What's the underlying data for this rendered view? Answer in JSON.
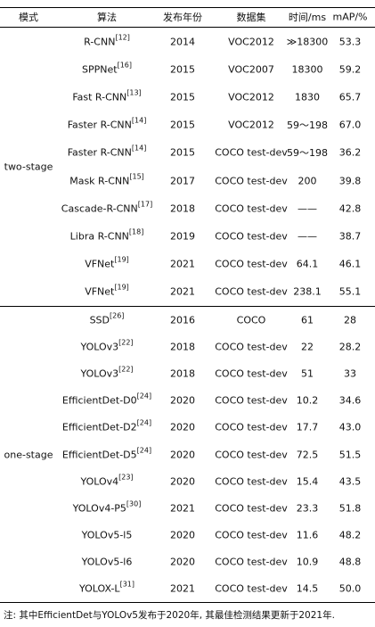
{
  "header": {
    "columns": [
      "模式",
      "算法",
      "发布年份",
      "数据集",
      "时间/ms",
      "mAP/%"
    ]
  },
  "groups": [
    {
      "mode": "two-stage",
      "rows": [
        {
          "algorithm": {
            "name": "R-CNN",
            "ref": "[12]"
          },
          "year": "2014",
          "dataset": "VOC2012",
          "time": "≫18300",
          "map": "53.3"
        },
        {
          "algorithm": {
            "name": "SPPNet",
            "ref": "[16]"
          },
          "year": "2015",
          "dataset": "VOC2007",
          "time": "18300",
          "map": "59.2"
        },
        {
          "algorithm": {
            "name": "Fast R-CNN",
            "ref": "[13]"
          },
          "year": "2015",
          "dataset": "VOC2012",
          "time": "1830",
          "map": "65.7"
        },
        {
          "algorithm": {
            "name": "Faster R-CNN",
            "ref": "[14]"
          },
          "year": "2015",
          "dataset": "VOC2012",
          "time": "59～198",
          "map": "67.0"
        },
        {
          "algorithm": {
            "name": "Faster R-CNN",
            "ref": "[14]"
          },
          "year": "2015",
          "dataset": "COCO test-dev",
          "time": "59～198",
          "map": "36.2"
        },
        {
          "algorithm": {
            "name": "Mask R-CNN",
            "ref": "[15]"
          },
          "year": "2017",
          "dataset": "COCO test-dev",
          "time": "200",
          "map": "39.8"
        },
        {
          "algorithm": {
            "name": "Cascade-R-CNN",
            "ref": "[17]"
          },
          "year": "2018",
          "dataset": "COCO test-dev",
          "time": "——",
          "map": "42.8"
        },
        {
          "algorithm": {
            "name": "Libra R-CNN",
            "ref": "[18]"
          },
          "year": "2019",
          "dataset": "COCO test-dev",
          "time": "——",
          "map": "38.7"
        },
        {
          "algorithm": {
            "name": "VFNet",
            "ref": "[19]"
          },
          "year": "2021",
          "dataset": "COCO test-dev",
          "time": "64.1",
          "map": "46.1"
        },
        {
          "algorithm": {
            "name": "VFNet",
            "ref": "[19]"
          },
          "year": "2021",
          "dataset": "COCO test-dev",
          "time": "238.1",
          "map": "55.1"
        }
      ]
    },
    {
      "mode": "one-stage",
      "rows": [
        {
          "algorithm": {
            "name": "SSD",
            "ref": "[26]"
          },
          "year": "2016",
          "dataset": "COCO",
          "time": "61",
          "map": "28"
        },
        {
          "algorithm": {
            "name": "YOLOv3",
            "ref": "[22]"
          },
          "year": "2018",
          "dataset": "COCO test-dev",
          "time": "22",
          "map": "28.2"
        },
        {
          "algorithm": {
            "name": "YOLOv3",
            "ref": "[22]"
          },
          "year": "2018",
          "dataset": "COCO test-dev",
          "time": "51",
          "map": "33"
        },
        {
          "algorithm": {
            "name": "EfficientDet-D0",
            "ref": "[24]"
          },
          "year": "2020",
          "dataset": "COCO test-dev",
          "time": "10.2",
          "map": "34.6"
        },
        {
          "algorithm": {
            "name": "EfficientDet-D2",
            "ref": "[24]"
          },
          "year": "2020",
          "dataset": "COCO test-dev",
          "time": "17.7",
          "map": "43.0"
        },
        {
          "algorithm": {
            "name": "EfficientDet-D5",
            "ref": "[24]"
          },
          "year": "2020",
          "dataset": "COCO test-dev",
          "time": "72.5",
          "map": "51.5"
        },
        {
          "algorithm": {
            "name": "YOLOv4",
            "ref": "[23]"
          },
          "year": "2020",
          "dataset": "COCO test-dev",
          "time": "15.4",
          "map": "43.5"
        },
        {
          "algorithm": {
            "name": "YOLOv4-P5",
            "ref": "[30]"
          },
          "year": "2021",
          "dataset": "COCO test-dev",
          "time": "23.3",
          "map": "51.8"
        },
        {
          "algorithm": {
            "name": "YOLOv5-l5",
            "ref": null
          },
          "year": "2020",
          "dataset": "COCO test-dev",
          "time": "11.6",
          "map": "48.2"
        },
        {
          "algorithm": {
            "name": "YOLOv5-l6",
            "ref": null
          },
          "year": "2020",
          "dataset": "COCO test-dev",
          "time": "10.9",
          "map": "48.8"
        },
        {
          "algorithm": {
            "name": "YOLOX-L",
            "ref": "[31]"
          },
          "year": "2021",
          "dataset": "COCO test-dev",
          "time": "14.5",
          "map": "50.0"
        }
      ]
    }
  ],
  "note": "注: 其中EfficientDet与YOLOv5发布于2020年, 其最佳检测结果更新于2021年."
}
